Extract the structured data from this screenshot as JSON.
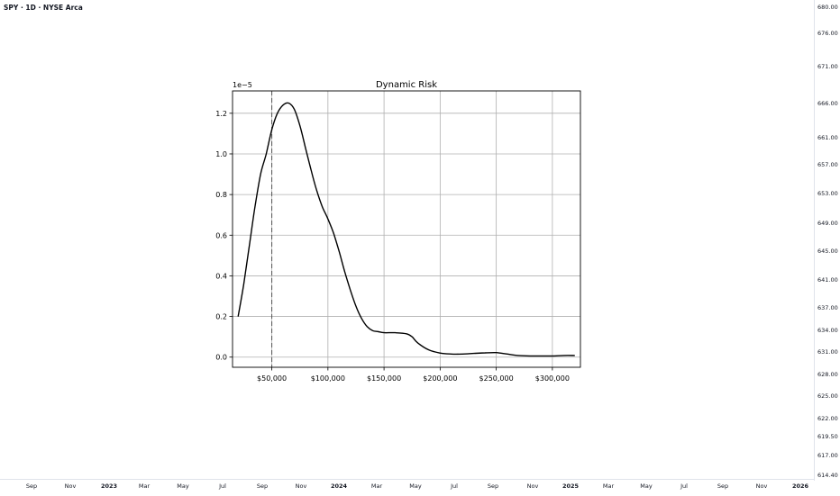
{
  "symbol_title": "SPY · 1D · NYSE Arca",
  "price_axis": [
    "680.00",
    "676.00",
    "671.00",
    "666.00",
    "661.00",
    "657.00",
    "653.00",
    "649.00",
    "645.00",
    "641.00",
    "637.00",
    "634.00",
    "631.00",
    "628.00",
    "625.00",
    "622.00",
    "619.50",
    "617.00",
    "614.40"
  ],
  "time_axis": [
    {
      "label": "Sep",
      "bold": false
    },
    {
      "label": "Nov",
      "bold": false
    },
    {
      "label": "2023",
      "bold": true
    },
    {
      "label": "Mar",
      "bold": false
    },
    {
      "label": "May",
      "bold": false
    },
    {
      "label": "Jul",
      "bold": false
    },
    {
      "label": "Sep",
      "bold": false
    },
    {
      "label": "Nov",
      "bold": false
    },
    {
      "label": "2024",
      "bold": true
    },
    {
      "label": "Mar",
      "bold": false
    },
    {
      "label": "May",
      "bold": false
    },
    {
      "label": "Jul",
      "bold": false
    },
    {
      "label": "Sep",
      "bold": false
    },
    {
      "label": "Nov",
      "bold": false
    },
    {
      "label": "2025",
      "bold": true
    },
    {
      "label": "Mar",
      "bold": false
    },
    {
      "label": "May",
      "bold": false
    },
    {
      "label": "Jul",
      "bold": false
    },
    {
      "label": "Sep",
      "bold": false
    },
    {
      "label": "Nov",
      "bold": false
    },
    {
      "label": "2026",
      "bold": true
    }
  ],
  "chart_data": {
    "type": "line",
    "title": "Dynamic Risk",
    "offset_text": "1e−5",
    "xlim": [
      15000,
      325000
    ],
    "ylim": [
      -0.05,
      1.31
    ],
    "grid": true,
    "x_ticks": [
      50000,
      100000,
      150000,
      200000,
      250000,
      300000
    ],
    "x_tick_labels": [
      "$50,000",
      "$100,000",
      "$150,000",
      "$200,000",
      "$250,000",
      "$300,000"
    ],
    "y_ticks": [
      0.0,
      0.2,
      0.4,
      0.6,
      0.8,
      1.0,
      1.2
    ],
    "y_tick_labels": [
      "0.0",
      "0.2",
      "0.4",
      "0.6",
      "0.8",
      "1.0",
      "1.2"
    ],
    "vline_x": 50000,
    "vline_style": "dashed",
    "line_color": "#000000",
    "series": [
      {
        "x": [
          20000,
          25000,
          30000,
          35000,
          40000,
          45000,
          50000,
          55000,
          60000,
          65000,
          70000,
          75000,
          80000,
          85000,
          90000,
          95000,
          100000,
          105000,
          110000,
          115000,
          120000,
          125000,
          130000,
          135000,
          140000,
          145000,
          150000,
          160000,
          170000,
          175000,
          180000,
          190000,
          200000,
          210000,
          220000,
          230000,
          240000,
          250000,
          260000,
          270000,
          280000,
          290000,
          300000,
          310000,
          320000
        ],
        "y": [
          0.2,
          0.36,
          0.55,
          0.74,
          0.9,
          1.0,
          1.12,
          1.2,
          1.24,
          1.25,
          1.22,
          1.14,
          1.03,
          0.92,
          0.82,
          0.74,
          0.68,
          0.61,
          0.52,
          0.42,
          0.33,
          0.25,
          0.19,
          0.15,
          0.13,
          0.125,
          0.12,
          0.12,
          0.115,
          0.1,
          0.07,
          0.035,
          0.02,
          0.015,
          0.015,
          0.018,
          0.021,
          0.022,
          0.015,
          0.008,
          0.006,
          0.006,
          0.006,
          0.008,
          0.008
        ]
      }
    ]
  }
}
